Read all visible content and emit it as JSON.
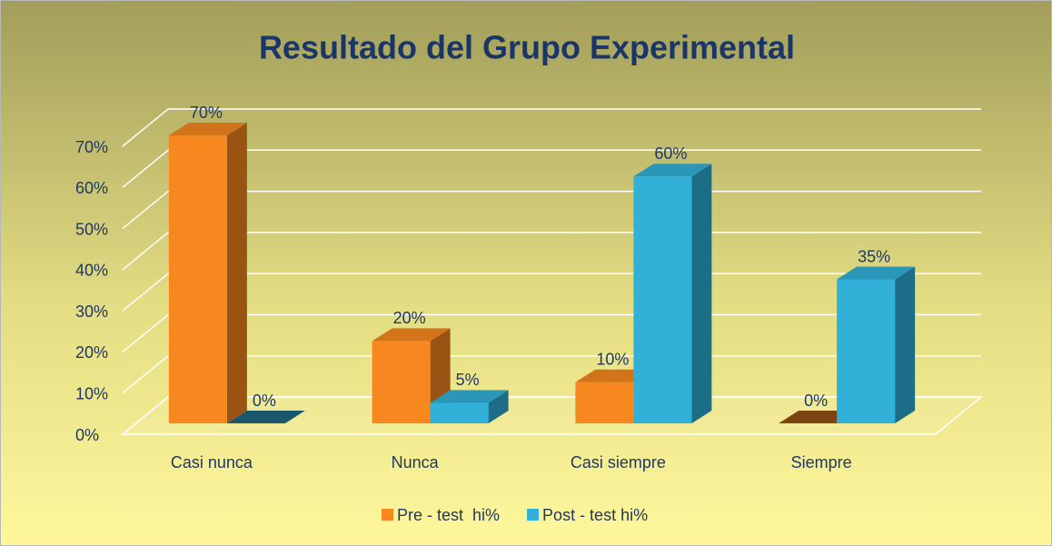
{
  "chart_data": {
    "type": "bar3d",
    "title": "Resultado del Grupo Experimental",
    "categories": [
      "Casi nunca",
      "Nunca",
      "Casi siempre",
      "Siempre"
    ],
    "series": [
      {
        "name": "Pre - test  hi%",
        "color": "#f7881f",
        "values": [
          70,
          20,
          10,
          0
        ],
        "value_labels": [
          "70%",
          "20%",
          "10%",
          "0%"
        ]
      },
      {
        "name": "Post - test hi%",
        "color": "#31b0d8",
        "values": [
          0,
          5,
          60,
          35
        ],
        "value_labels": [
          "0%",
          "5%",
          "60%",
          "35%"
        ]
      }
    ],
    "ylim": [
      0,
      70
    ],
    "yticks": [
      {
        "value": 0,
        "label": "0%"
      },
      {
        "value": 10,
        "label": "10%"
      },
      {
        "value": 20,
        "label": "20%"
      },
      {
        "value": 30,
        "label": "30%"
      },
      {
        "value": 40,
        "label": "40%"
      },
      {
        "value": 50,
        "label": "50%"
      },
      {
        "value": 60,
        "label": "60%"
      },
      {
        "value": 70,
        "label": "70%"
      }
    ],
    "grid": true,
    "legend": "bottom"
  }
}
